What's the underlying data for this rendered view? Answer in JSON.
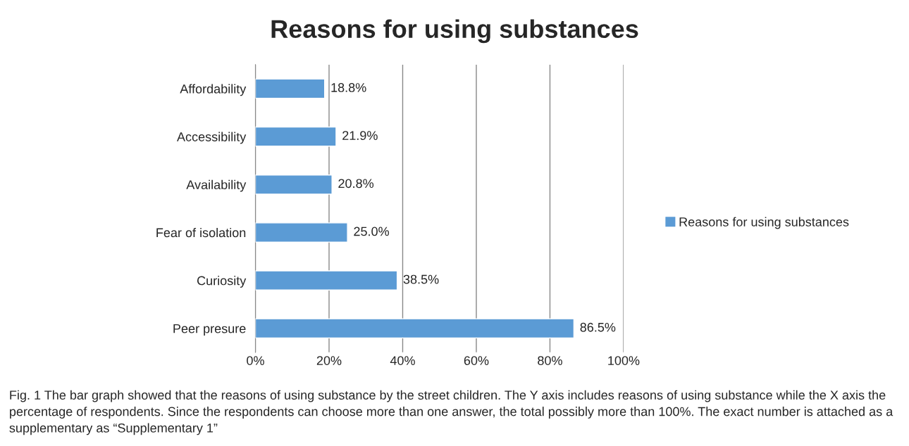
{
  "chart_data": {
    "type": "bar",
    "orientation": "horizontal",
    "title": "Reasons for using substances",
    "categories": [
      "Affordability",
      "Accessibility",
      "Availability",
      "Fear of isolation",
      "Curiosity",
      "Peer presure"
    ],
    "series": [
      {
        "name": "Reasons for using substances",
        "color": "#5b9bd5",
        "values": [
          18.8,
          21.9,
          20.8,
          25.0,
          38.5,
          86.5
        ],
        "value_labels": [
          "18.8%",
          "21.9%",
          "20.8%",
          "25.0%",
          "38.5%",
          "86.5%"
        ]
      }
    ],
    "xlim": [
      0,
      100
    ],
    "xticks": [
      {
        "value": 0,
        "label": "0%"
      },
      {
        "value": 20,
        "label": "20%"
      },
      {
        "value": 40,
        "label": "40%"
      },
      {
        "value": 60,
        "label": "60%"
      },
      {
        "value": 80,
        "label": "80%"
      },
      {
        "value": 100,
        "label": "100%"
      }
    ],
    "grid": "x",
    "legend": "right",
    "annotations": [
      "Fig. 1 The bar graph showed that the reasons of using substance by the street children. The Y axis includes reasons of using substance while the X axis the percentage of respondents. Since the respondents can choose more than one answer, the total possibly more than 100%. The exact number is attached as a supplementary as “Supplementary 1”"
    ]
  }
}
